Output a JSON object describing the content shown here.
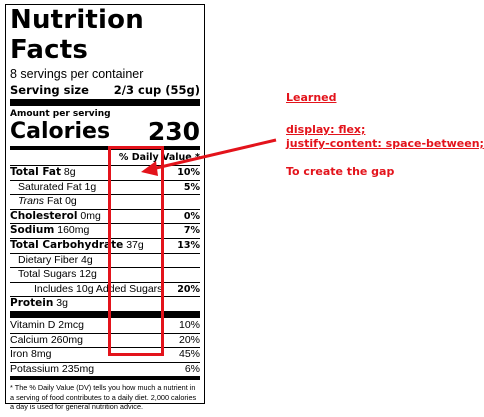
{
  "label": {
    "title": "Nutrition Facts",
    "servings": "8 servings per container",
    "serving_size_label": "Serving size",
    "serving_size_value": "2/3 cup (55g)",
    "amount_per_serving": "Amount per serving",
    "calories_label": "Calories",
    "calories_value": "230",
    "dv_header": "% Daily Value *",
    "rows": [
      {
        "bold": "Total Fat",
        "rest": " 8g",
        "pct": "10%"
      },
      {
        "text": "Saturated Fat 1g",
        "pct": "5%"
      },
      {
        "italic": "Trans",
        "rest": " Fat 0g",
        "pct": ""
      },
      {
        "bold": "Cholesterol",
        "rest": " 0mg",
        "pct": "0%"
      },
      {
        "bold": "Sodium",
        "rest": " 160mg",
        "pct": "7%"
      },
      {
        "bold": "Total Carbohydrate",
        "rest": " 37g",
        "pct": "13%"
      },
      {
        "text": "Dietary Fiber 4g",
        "pct": ""
      },
      {
        "text": "Total Sugars 12g",
        "pct": ""
      },
      {
        "text": "Includes 10g Added Sugars",
        "pct": "20%"
      },
      {
        "bold": "Protein",
        "rest": " 3g",
        "pct": ""
      }
    ],
    "vitamins": [
      {
        "name": "Vitamin D 2mcg",
        "pct": "10%"
      },
      {
        "name": "Calcium 260mg",
        "pct": "20%"
      },
      {
        "name": "Iron 8mg",
        "pct": "45%"
      },
      {
        "name": "Potassium 235mg",
        "pct": "6%"
      }
    ],
    "footnote": "* The % Daily Value (DV) tells you how much a nutrient in a serving of food contributes to a daily diet. 2,000 calories a day is used for general nutrition advice."
  },
  "annotation": {
    "line1": "Learned",
    "line2": "display: flex;",
    "line3": "justify-content: space-between;",
    "line4": "To create the gap",
    "color": "#e3131b"
  }
}
